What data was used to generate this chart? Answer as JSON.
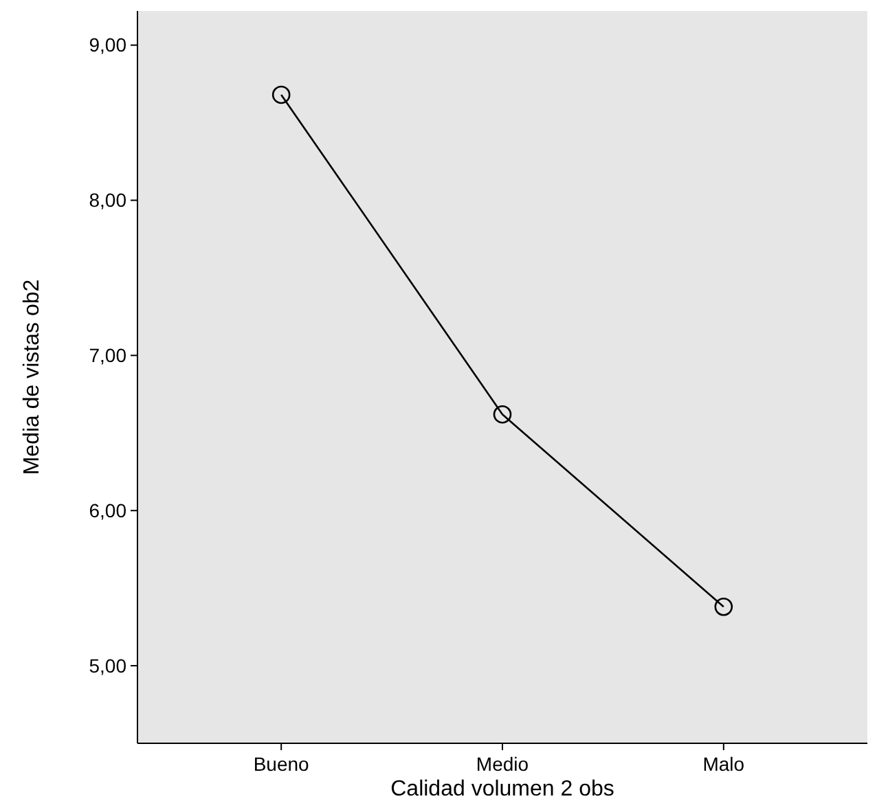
{
  "chart_data": {
    "type": "line",
    "xlabel": "Calidad volumen 2 obs",
    "ylabel": "Media de vistas ob2",
    "categories": [
      "Bueno",
      "Medio",
      "Malo"
    ],
    "series": [
      {
        "color": "#000000",
        "values": [
          8.68,
          6.62,
          5.38
        ]
      }
    ],
    "ylim": [
      4.5,
      9.22
    ],
    "yticks": [
      {
        "value": 5,
        "label": "5,00"
      },
      {
        "value": 6,
        "label": "6,00"
      },
      {
        "value": 7,
        "label": "7,00"
      },
      {
        "value": 8,
        "label": "8,00"
      },
      {
        "value": 9,
        "label": "9,00"
      }
    ],
    "marker": "circle",
    "line_style": "solid",
    "grid": false
  }
}
